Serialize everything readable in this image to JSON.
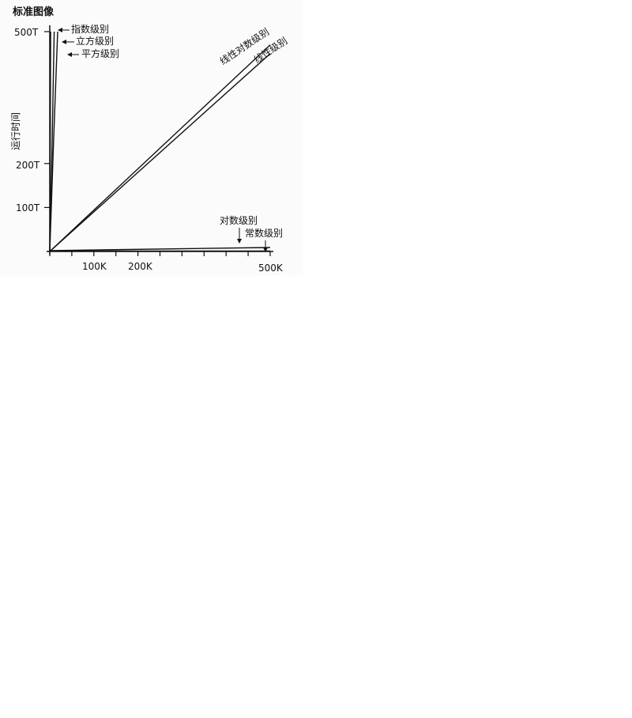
{
  "chart_data": {
    "type": "line",
    "title": "标准图像",
    "ylabel": "运行时间",
    "xlabel": "",
    "xlim": [
      0,
      500000
    ],
    "ylim": [
      0,
      500
    ],
    "y_unit": "T",
    "x_ticks": [
      {
        "value": 100000,
        "label": "100K"
      },
      {
        "value": 200000,
        "label": "200K"
      },
      {
        "value": 500000,
        "label": "500K"
      }
    ],
    "y_ticks": [
      {
        "value": 100,
        "label": "100T"
      },
      {
        "value": 200,
        "label": "200T"
      },
      {
        "value": 500,
        "label": "500T"
      }
    ],
    "x_minor_ticks": [
      0,
      50000,
      100000,
      150000,
      200000,
      250000,
      300000,
      350000,
      400000,
      450000,
      500000
    ],
    "series": [
      {
        "name": "指数级别",
        "points": [
          [
            0,
            0
          ],
          [
            1000,
            250
          ],
          [
            2000,
            500
          ]
        ]
      },
      {
        "name": "立方级别",
        "points": [
          [
            0,
            0
          ],
          [
            5000,
            230
          ],
          [
            10000,
            500
          ]
        ]
      },
      {
        "name": "平方级别",
        "points": [
          [
            0,
            0
          ],
          [
            9000,
            260
          ],
          [
            18000,
            500
          ]
        ]
      },
      {
        "name": "线性对数级别",
        "points": [
          [
            0,
            0
          ],
          [
            500000,
            470
          ]
        ]
      },
      {
        "name": "线性级别",
        "points": [
          [
            0,
            0
          ],
          [
            500000,
            450
          ]
        ]
      },
      {
        "name": "对数级别",
        "points": [
          [
            0,
            2
          ],
          [
            500000,
            9
          ]
        ]
      },
      {
        "name": "常数级别",
        "points": [
          [
            0,
            1
          ],
          [
            500000,
            1
          ]
        ]
      }
    ],
    "legend": "inline labels"
  }
}
